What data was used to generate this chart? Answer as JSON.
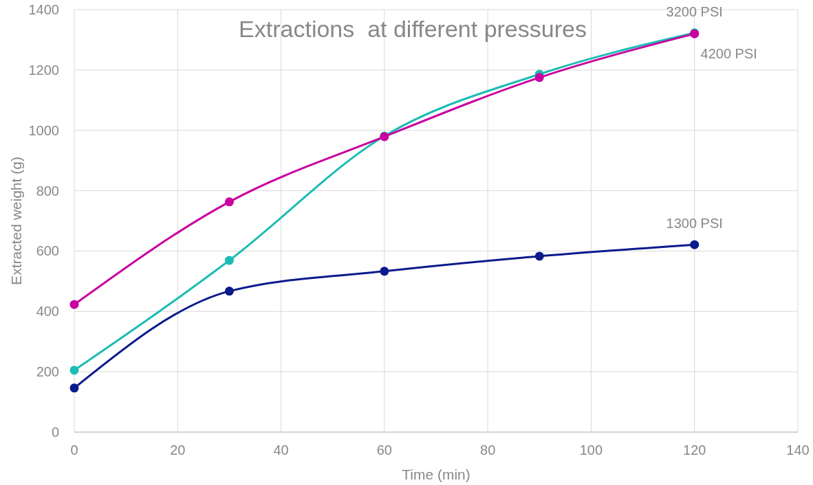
{
  "chart_data": {
    "type": "line",
    "title": "Extractions  at different pressures",
    "xlabel": "Time (min)",
    "ylabel": "Extracted weight (g)",
    "x": [
      0,
      30,
      60,
      90,
      120
    ],
    "series": [
      {
        "name": "1300 PSI",
        "color": "#0b1a8c",
        "values": [
          146,
          467,
          533,
          583,
          621
        ]
      },
      {
        "name": "3200 PSI",
        "color": "#1bbcb4",
        "values": [
          205,
          569,
          981,
          1186,
          1323
        ]
      },
      {
        "name": "4200 PSI",
        "color": "#c800a0",
        "values": [
          423,
          763,
          979,
          1175,
          1320
        ]
      }
    ],
    "xlim": [
      0,
      140
    ],
    "xticks": [
      0,
      20,
      40,
      60,
      80,
      100,
      120,
      140
    ],
    "ylim": [
      0,
      1400
    ],
    "yticks": [
      0,
      200,
      400,
      600,
      800,
      1000,
      1200,
      1400
    ],
    "grid": true,
    "marker": "circle",
    "line_style": "solid"
  }
}
